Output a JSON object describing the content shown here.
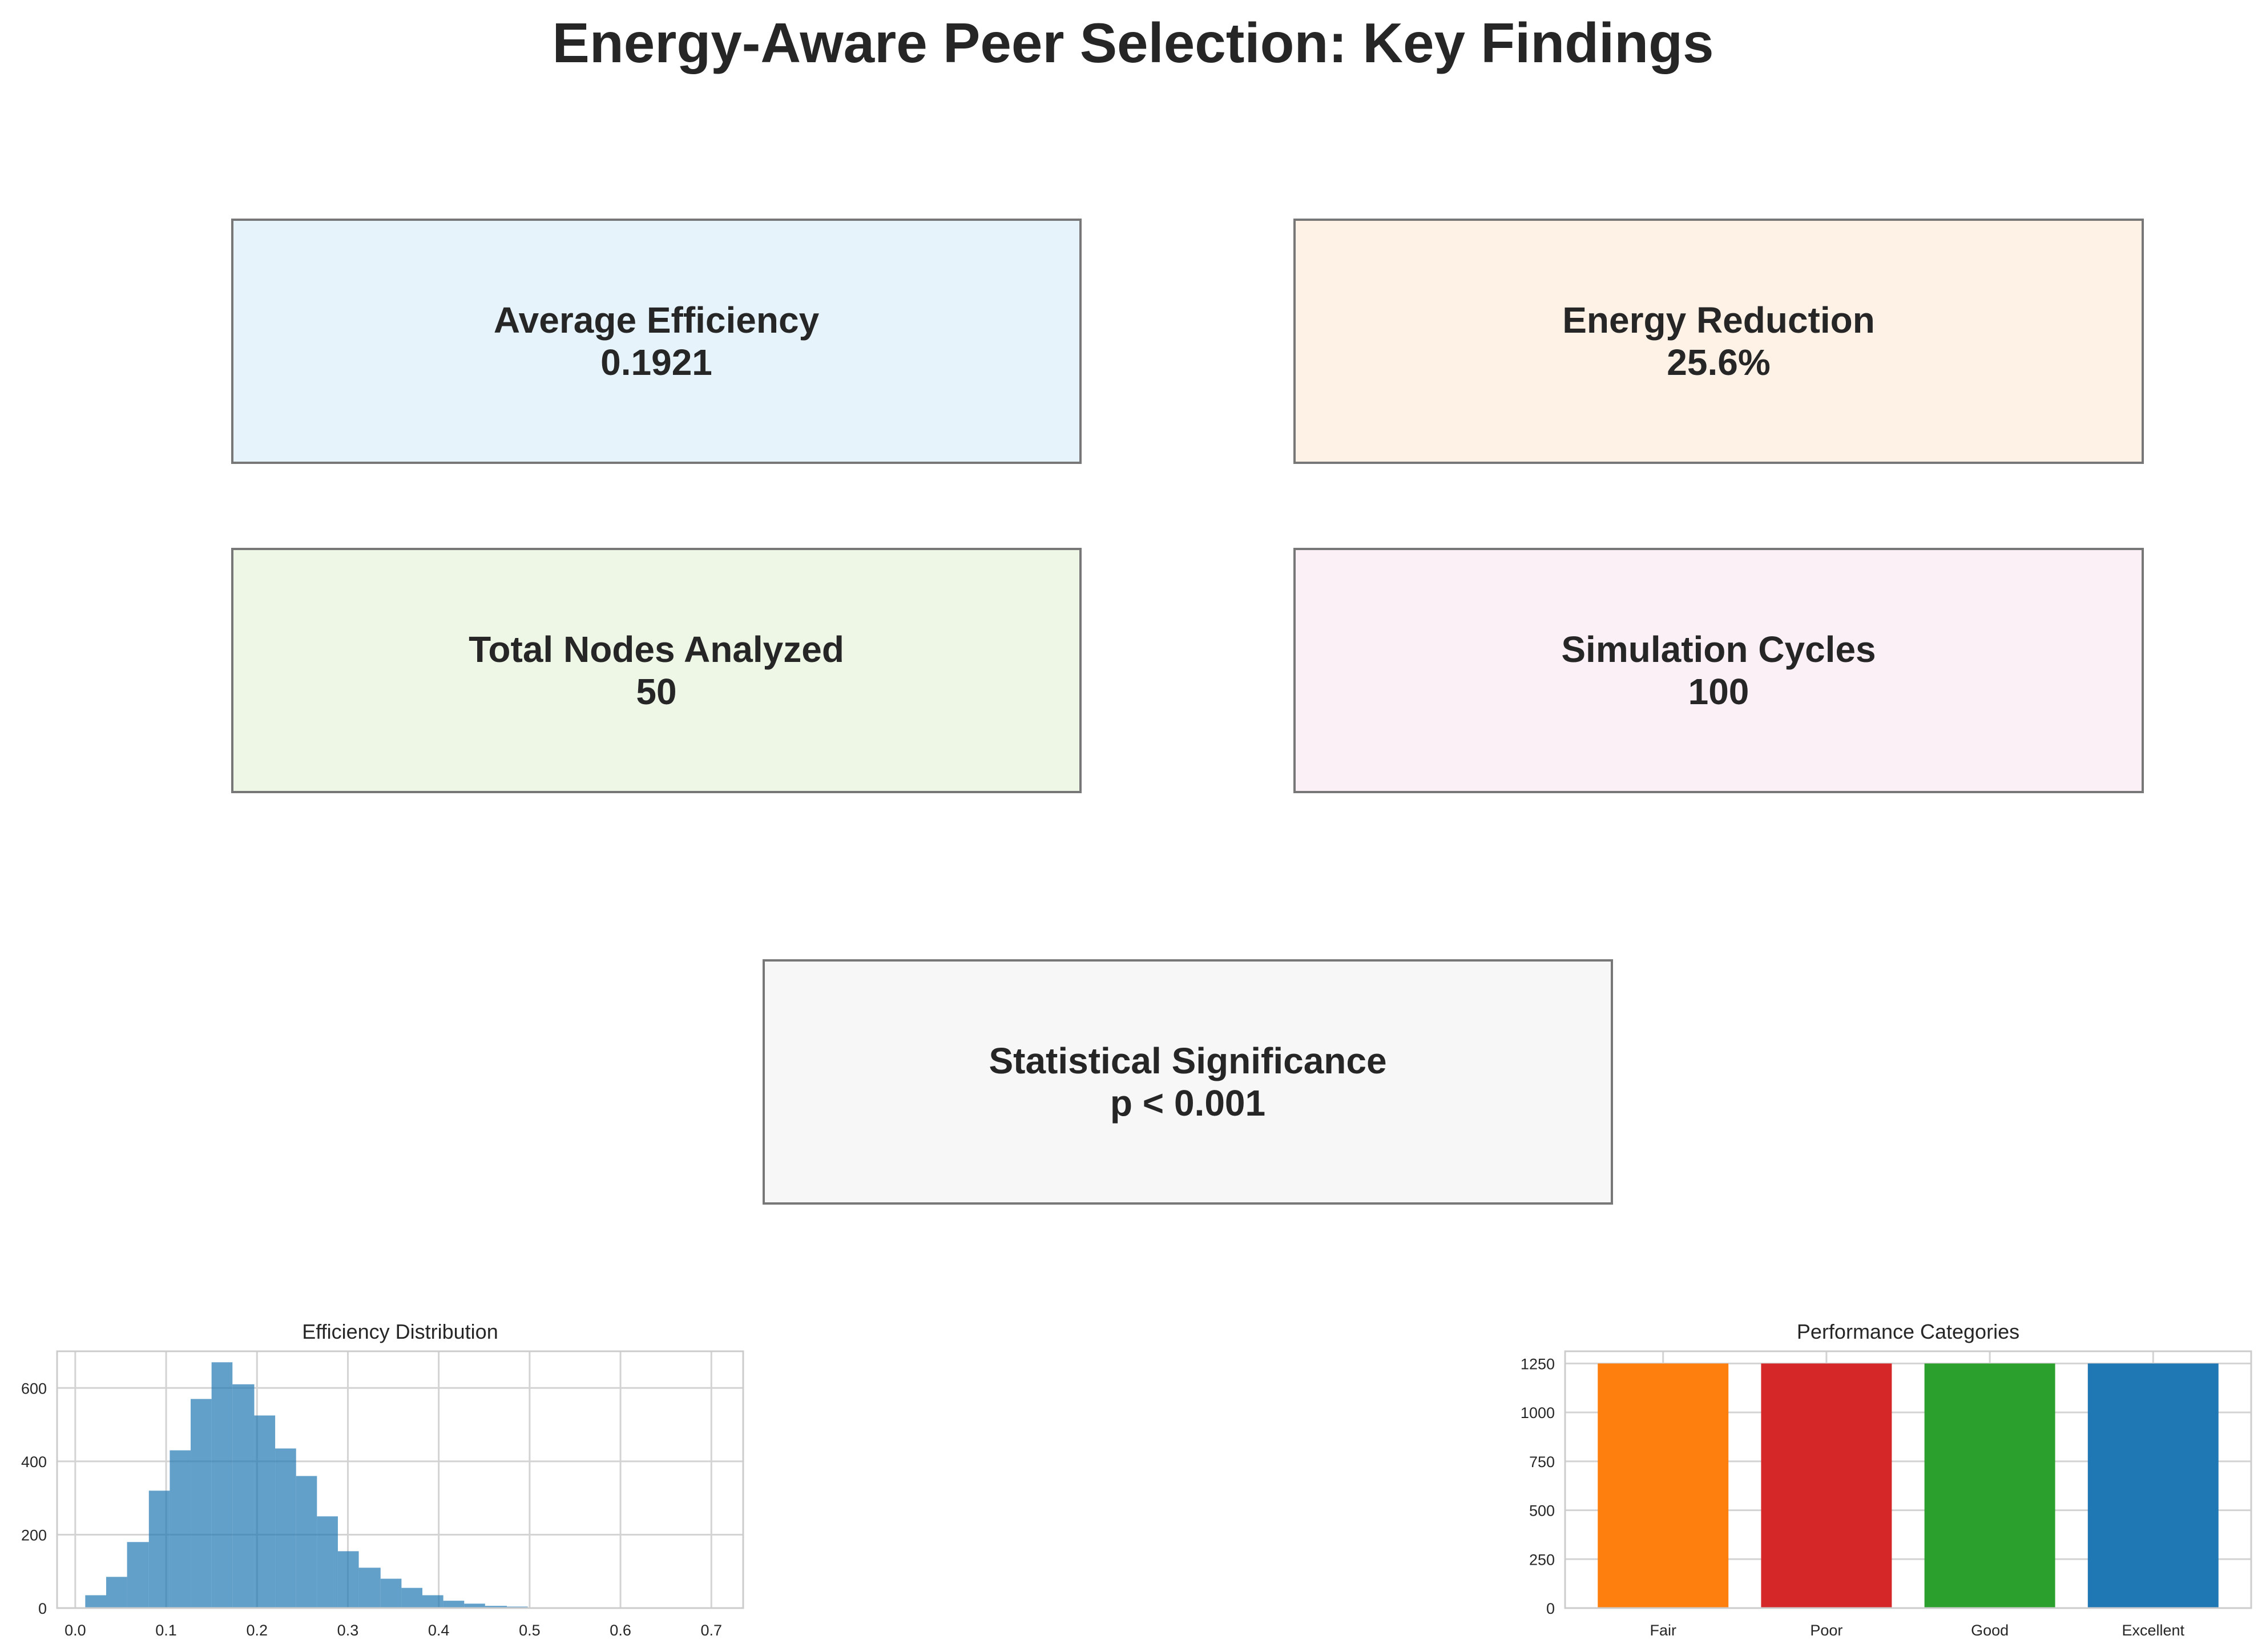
{
  "title": "Energy-Aware Peer Selection: Key Findings",
  "cards": [
    {
      "label": "Average Efficiency",
      "value": "0.1921",
      "color": "#e6f3fb"
    },
    {
      "label": "Energy Reduction",
      "value": "25.6%",
      "color": "#fef1e6"
    },
    {
      "label": "Total Nodes Analyzed",
      "value": "50",
      "color": "#eef7e6"
    },
    {
      "label": "Simulation Cycles",
      "value": "100",
      "color": "#fcf0f7"
    },
    {
      "label": "Statistical Significance",
      "value": "p < 0.001",
      "color": "#f7f7f7"
    }
  ],
  "chart_data": [
    {
      "type": "bar",
      "subtype": "histogram",
      "title": "Efficiency Distribution",
      "xlabel": "",
      "ylabel": "",
      "xlim": [
        -0.02,
        0.735
      ],
      "ylim": [
        0,
        700
      ],
      "xticks": [
        0.0,
        0.1,
        0.2,
        0.3,
        0.4,
        0.5,
        0.6,
        0.7
      ],
      "yticks": [
        0,
        200,
        400,
        600
      ],
      "bin_edges": [
        0.011,
        0.034,
        0.057,
        0.081,
        0.104,
        0.127,
        0.15,
        0.173,
        0.197,
        0.22,
        0.243,
        0.266,
        0.289,
        0.312,
        0.336,
        0.359,
        0.382,
        0.405,
        0.428,
        0.451,
        0.475,
        0.498,
        0.521,
        0.544,
        0.567,
        0.59,
        0.614,
        0.637,
        0.66,
        0.683,
        0.706
      ],
      "values": [
        35,
        85,
        180,
        320,
        430,
        570,
        670,
        610,
        525,
        435,
        360,
        250,
        155,
        110,
        80,
        55,
        35,
        20,
        12,
        6,
        4,
        2,
        1,
        1,
        0,
        0,
        0,
        0,
        0,
        2
      ],
      "color": "#1f77b4",
      "grid": true
    },
    {
      "type": "bar",
      "title": "Performance Categories",
      "xlabel": "",
      "ylabel": "",
      "categories": [
        "Fair",
        "Poor",
        "Good",
        "Excellent"
      ],
      "values": [
        1250,
        1250,
        1250,
        1250
      ],
      "colors": [
        "#ff7f0e",
        "#d62728",
        "#2ca02c",
        "#1f77b4"
      ],
      "ylim": [
        0,
        1312.5
      ],
      "yticks": [
        0,
        250,
        500,
        750,
        1000,
        1250
      ],
      "grid": true
    }
  ]
}
